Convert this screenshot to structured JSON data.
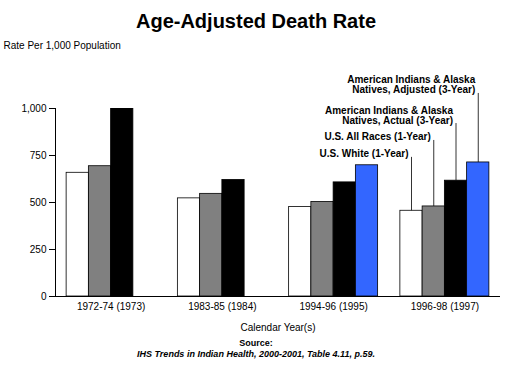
{
  "chart_data": {
    "type": "bar",
    "title": "Age-Adjusted Death Rate",
    "ylabel": "Rate Per 1,000 Population",
    "xlabel": "Calendar Year(s)",
    "categories": [
      "1972-74 (1973)",
      "1983-85 (1984)",
      "1994-96 (1995)",
      "1996-98 (1997)"
    ],
    "series": [
      {
        "name": "U.S. White (1-Year)",
        "color": "#ffffff",
        "values": [
          658,
          522,
          476,
          456
        ]
      },
      {
        "name": "U.S. All Races (1-Year)",
        "color": "#808080",
        "values": [
          693,
          546,
          503,
          479
        ]
      },
      {
        "name": "American Indians & Alaska Natives, Actual (3-Year)",
        "color": "#000000",
        "values": [
          1000,
          620,
          607,
          616
        ]
      },
      {
        "name": "American Indians & Alaska Natives, Adjusted (3-Year)",
        "color": "#3366ff",
        "values": [
          null,
          null,
          698,
          713
        ]
      }
    ],
    "ylim": [
      0,
      1000
    ],
    "yticks": [
      0,
      250,
      500,
      750,
      {
        "value": 1000,
        "label": "1,000"
      }
    ],
    "source": [
      "Source:",
      "IHS Trends in Indian Health, 2000-2001, Table 4.11, p.59."
    ]
  }
}
